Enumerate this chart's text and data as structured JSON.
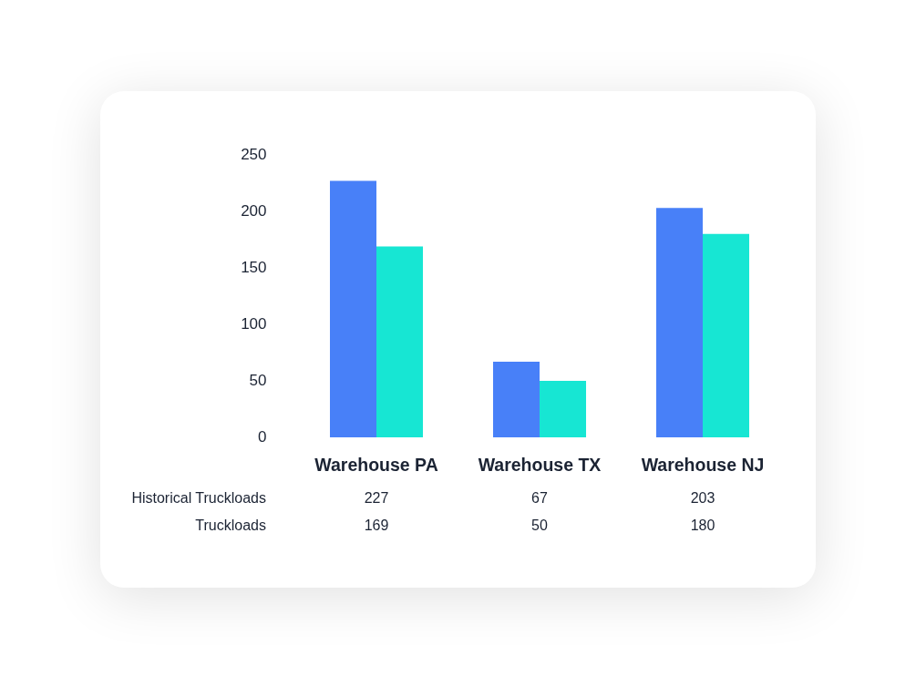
{
  "chart_data": {
    "type": "bar",
    "categories": [
      "Warehouse PA",
      "Warehouse TX",
      "Warehouse NJ"
    ],
    "series": [
      {
        "color": "#4880f8",
        "values": [
          227,
          67,
          203
        ]
      },
      {
        "color": "#17e6d3",
        "values": [
          169,
          50,
          180
        ]
      }
    ],
    "annotations": [
      "Historical Truckloads",
      "Truckloads"
    ],
    "ylim": [
      0,
      250
    ],
    "yticks": [
      0,
      50,
      100,
      150,
      200,
      250
    ],
    "data_labels": true,
    "grid": false,
    "legend": false
  }
}
